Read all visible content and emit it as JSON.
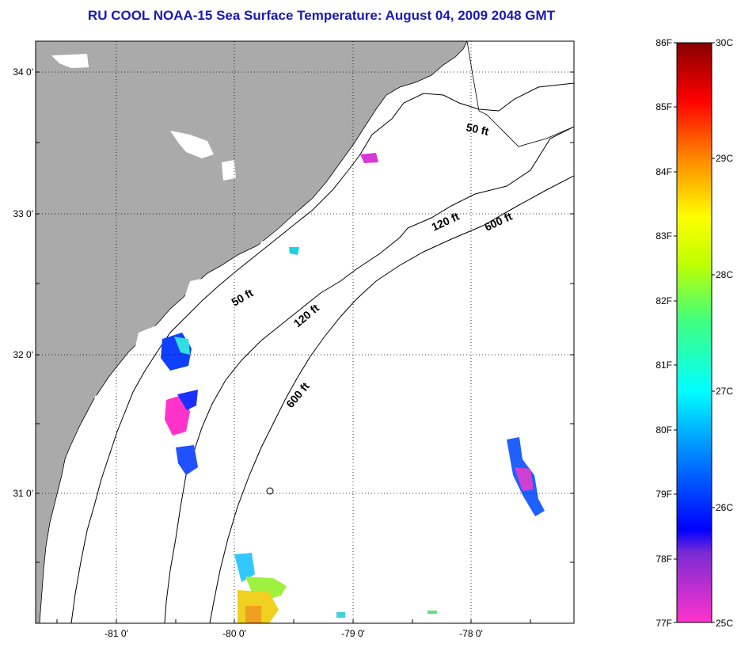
{
  "title": "RU COOL  NOAA-15  Sea Surface Temperature:  August 04, 2009 2048 GMT",
  "map": {
    "lat_labels": [
      "34 0'",
      "33 0'",
      "32 0'",
      "31 0'"
    ],
    "lon_labels": [
      "-81 0'",
      "-80 0'",
      "-79 0'",
      "-78 0'"
    ],
    "contour_labels": [
      "50 ft",
      "120 ft",
      "600 ft",
      "50 ft",
      "120 ft",
      "600 ft"
    ],
    "colors": {
      "land": "#aaaaaa",
      "ocean": "#ffffff",
      "grid": "#000000"
    }
  },
  "colorbar": {
    "f_labels": [
      "86F",
      "85F",
      "84F",
      "83F",
      "82F",
      "81F",
      "80F",
      "79F",
      "78F",
      "77F"
    ],
    "c_labels": [
      "30C",
      "29C",
      "28C",
      "27C",
      "26C",
      "25C"
    ]
  }
}
